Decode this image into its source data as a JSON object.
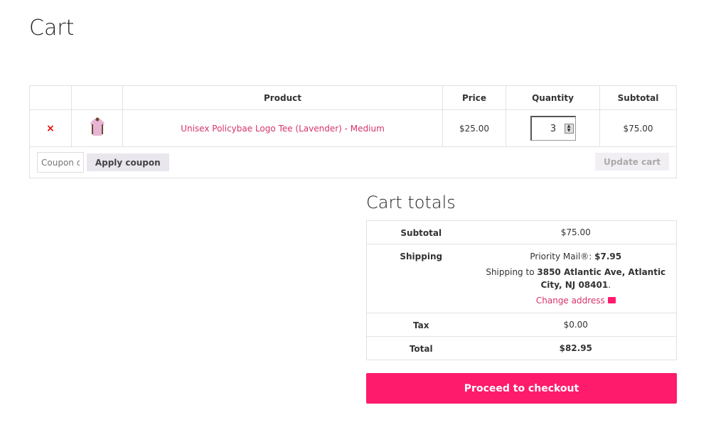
{
  "page_title": "Cart",
  "table": {
    "headers": [
      "",
      "",
      "Product",
      "Price",
      "Quantity",
      "Subtotal"
    ],
    "items": [
      {
        "product": "Unisex Policybae Logo Tee (Lavender) - Medium",
        "price": "$25.00",
        "quantity": "3",
        "subtotal": "$75.00",
        "remove": "×"
      }
    ]
  },
  "coupon": {
    "placeholder": "Coupon code",
    "apply_label": "Apply coupon"
  },
  "update_label": "Update cart",
  "totals": {
    "title": "Cart totals",
    "subtotal_label": "Subtotal",
    "subtotal": "$75.00",
    "shipping_label": "Shipping",
    "shipping_method": "Priority Mail®:",
    "shipping_cost": "$7.95",
    "shipping_to": "Shipping to",
    "address": "3850 Atlantic Ave, Atlantic City, NJ 08401",
    "change_address": "Change address",
    "tax_label": "Tax",
    "tax": "$0.00",
    "total_label": "Total",
    "total": "$82.95"
  },
  "checkout_label": "Proceed to checkout",
  "colors": {
    "accent": "#ff1b6b",
    "link": "#d6336c"
  }
}
